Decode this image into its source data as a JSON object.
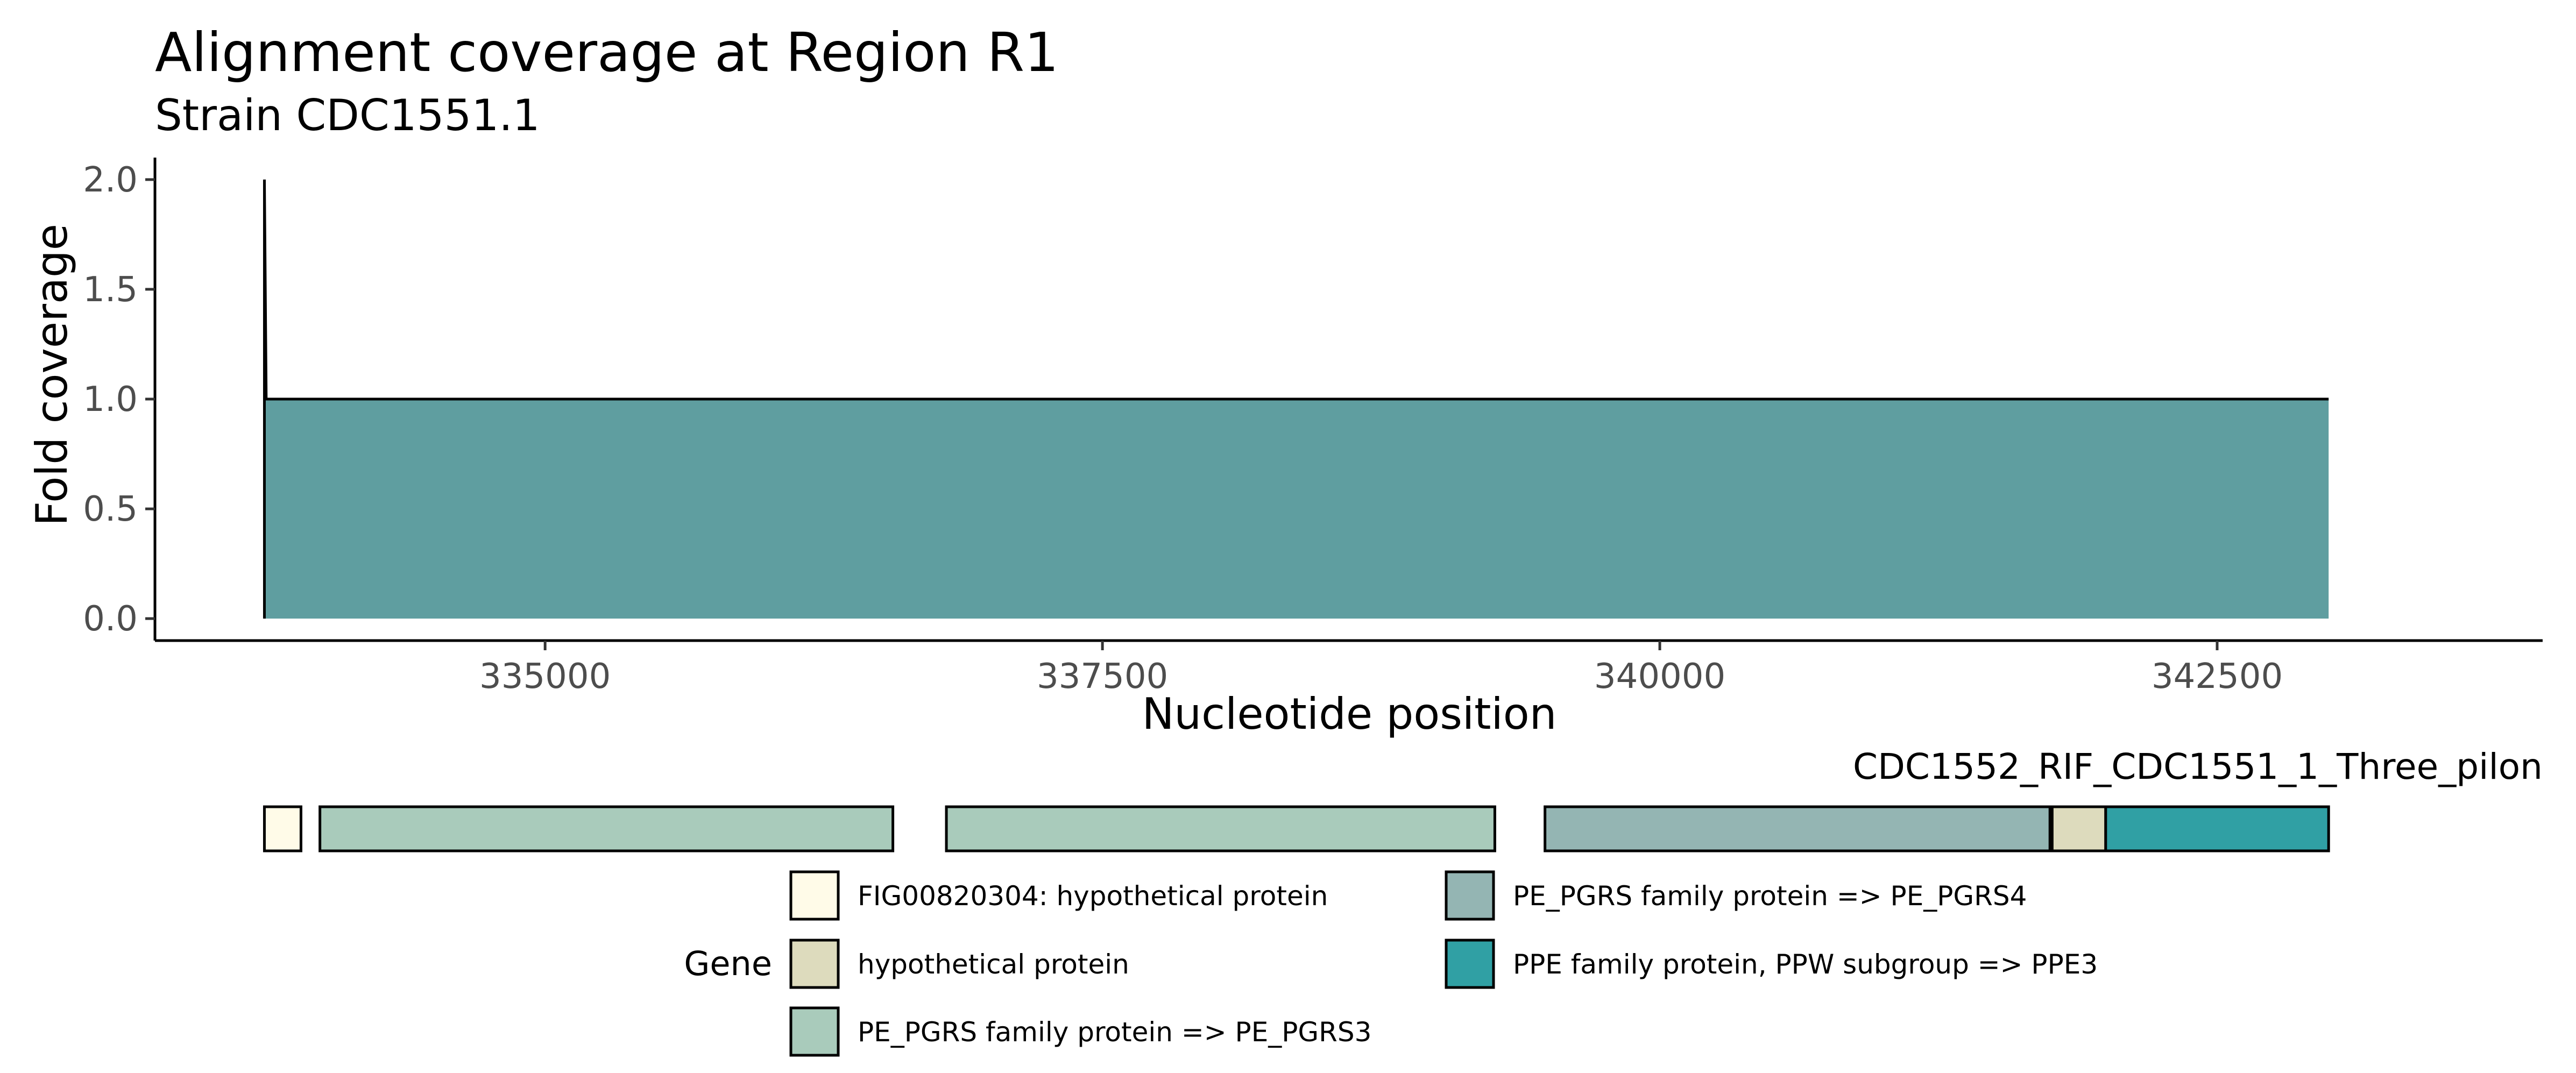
{
  "chart_data": {
    "type": "area",
    "title": "Alignment coverage at Region R1",
    "subtitle": "Strain CDC1551.1",
    "xlabel": "Nucleotide position",
    "ylabel": "Fold coverage",
    "xlim": [
      333250,
      343960
    ],
    "ylim": [
      -0.1,
      2.1
    ],
    "x_ticks": [
      335000,
      337500,
      340000,
      342500
    ],
    "y_ticks": [
      0.0,
      0.5,
      1.0,
      1.5,
      2.0
    ],
    "y_tick_labels": [
      "0.0",
      "0.5",
      "1.0",
      "1.5",
      "2.0"
    ],
    "grid": false,
    "series": [
      {
        "x": [
          333741,
          333741,
          333749,
          343000
        ],
        "y": [
          0,
          2,
          1,
          1
        ],
        "fill_color": "#5f9ea0",
        "line_color": "#000000"
      }
    ],
    "gene_track": {
      "label": "CDC1552_RIF_CDC1551_1_Three_pilon",
      "genes": [
        {
          "start": 333741,
          "end": 333905,
          "legend_index": 0
        },
        {
          "start": 333990,
          "end": 336560,
          "legend_index": 2
        },
        {
          "start": 336800,
          "end": 339260,
          "legend_index": 2
        },
        {
          "start": 339485,
          "end": 341750,
          "legend_index": 3
        },
        {
          "start": 341760,
          "end": 342000,
          "legend_index": 1
        },
        {
          "start": 342000,
          "end": 343000,
          "legend_index": 4
        }
      ]
    },
    "legend": {
      "title": "Gene",
      "position": "bottom",
      "entries": [
        {
          "label": "FIG00820304: hypothetical protein",
          "color": "#fffbe8"
        },
        {
          "label": "hypothetical protein",
          "color": "#dddbbd"
        },
        {
          "label": "PE_PGRS family protein => PE_PGRS3",
          "color": "#a9cbbb"
        },
        {
          "label": "PE_PGRS family protein => PE_PGRS4",
          "color": "#94b5b3"
        },
        {
          "label": "PPE family protein, PPW subgroup => PPE3",
          "color": "#30a0a4"
        }
      ]
    }
  }
}
